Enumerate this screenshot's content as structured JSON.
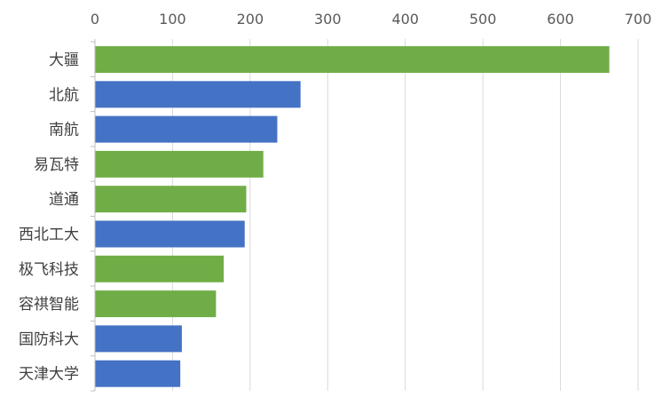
{
  "chart_data": {
    "type": "bar",
    "orientation": "horizontal",
    "categories": [
      "大疆",
      "北航",
      "南航",
      "易瓦特",
      "道通",
      "西北工大",
      "极飞科技",
      "容祺智能",
      "国防科大",
      "天津大学"
    ],
    "values": [
      663,
      265,
      235,
      217,
      195,
      193,
      166,
      156,
      112,
      110
    ],
    "bar_colors": [
      "#70ad47",
      "#4472c4",
      "#4472c4",
      "#70ad47",
      "#70ad47",
      "#4472c4",
      "#70ad47",
      "#70ad47",
      "#4472c4",
      "#4472c4"
    ],
    "x_ticks": [
      "0",
      "100",
      "200",
      "300",
      "400",
      "500",
      "600",
      "700"
    ],
    "xlim": [
      0,
      700
    ],
    "x_axis_position": "top",
    "grid": true,
    "title": "",
    "xlabel": "",
    "ylabel": ""
  }
}
